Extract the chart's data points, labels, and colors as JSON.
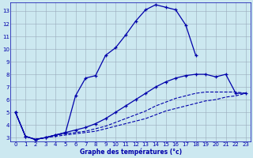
{
  "xlabel": "Graphe des températures (°c)",
  "background_color": "#cce8f0",
  "grid_color": "#99aabb",
  "line_color": "#0000aa",
  "xlim": [
    -0.5,
    23.5
  ],
  "ylim": [
    2.7,
    13.7
  ],
  "yticks": [
    3,
    4,
    5,
    6,
    7,
    8,
    9,
    10,
    11,
    12,
    13
  ],
  "xticks": [
    0,
    1,
    2,
    3,
    4,
    5,
    6,
    7,
    8,
    9,
    10,
    11,
    12,
    13,
    14,
    15,
    16,
    17,
    18,
    19,
    20,
    21,
    22,
    23
  ],
  "line1_x": [
    0,
    1,
    2,
    3,
    4,
    5,
    6,
    7,
    8,
    9,
    10,
    11,
    12,
    13,
    14,
    15,
    16,
    17,
    18
  ],
  "line1_y": [
    5.0,
    3.1,
    2.85,
    3.0,
    3.2,
    3.4,
    6.3,
    7.7,
    7.9,
    9.5,
    10.1,
    11.1,
    12.2,
    13.1,
    13.5,
    13.3,
    13.1,
    11.9,
    9.5
  ],
  "line2_x": [
    0,
    1,
    2,
    3,
    4,
    5,
    6,
    7,
    8,
    9,
    10,
    11,
    12,
    13,
    14,
    15,
    16,
    17,
    18,
    19,
    20,
    21,
    22,
    23
  ],
  "line2_y": [
    5.0,
    3.1,
    2.85,
    3.0,
    3.2,
    3.4,
    3.6,
    3.8,
    4.1,
    4.5,
    5.0,
    5.5,
    6.0,
    6.5,
    7.0,
    7.4,
    7.7,
    7.9,
    8.0,
    8.0,
    7.8,
    8.0,
    6.5,
    6.5
  ],
  "line3_x": [
    0,
    1,
    2,
    3,
    4,
    5,
    6,
    7,
    8,
    9,
    10,
    11,
    12,
    13,
    14,
    15,
    16,
    17,
    18,
    19,
    20,
    21,
    22,
    23
  ],
  "line3_y": [
    5.0,
    3.1,
    2.85,
    3.0,
    3.2,
    3.3,
    3.4,
    3.5,
    3.7,
    3.9,
    4.2,
    4.5,
    4.8,
    5.1,
    5.5,
    5.8,
    6.1,
    6.3,
    6.5,
    6.6,
    6.6,
    6.6,
    6.6,
    6.5
  ],
  "line4_x": [
    0,
    1,
    2,
    3,
    4,
    5,
    6,
    7,
    8,
    9,
    10,
    11,
    12,
    13,
    14,
    15,
    16,
    17,
    18,
    19,
    20,
    21,
    22,
    23
  ],
  "line4_y": [
    5.0,
    3.1,
    2.85,
    3.0,
    3.1,
    3.2,
    3.3,
    3.4,
    3.5,
    3.7,
    3.9,
    4.1,
    4.3,
    4.5,
    4.8,
    5.1,
    5.3,
    5.5,
    5.7,
    5.9,
    6.0,
    6.2,
    6.3,
    6.5
  ]
}
